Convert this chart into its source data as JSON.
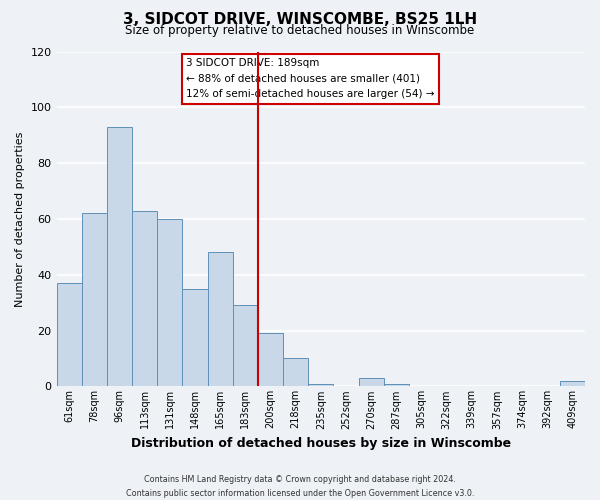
{
  "title": "3, SIDCOT DRIVE, WINSCOMBE, BS25 1LH",
  "subtitle": "Size of property relative to detached houses in Winscombe",
  "xlabel": "Distribution of detached houses by size in Winscombe",
  "ylabel": "Number of detached properties",
  "bar_labels": [
    "61sqm",
    "78sqm",
    "96sqm",
    "113sqm",
    "131sqm",
    "148sqm",
    "165sqm",
    "183sqm",
    "200sqm",
    "218sqm",
    "235sqm",
    "252sqm",
    "270sqm",
    "287sqm",
    "305sqm",
    "322sqm",
    "339sqm",
    "357sqm",
    "374sqm",
    "392sqm",
    "409sqm"
  ],
  "bar_values": [
    37,
    62,
    93,
    63,
    60,
    35,
    48,
    29,
    19,
    10,
    1,
    0,
    3,
    1,
    0,
    0,
    0,
    0,
    0,
    0,
    2
  ],
  "bar_color": "#c8d8e8",
  "bar_edge_color": "#6090b8",
  "ylim": [
    0,
    120
  ],
  "yticks": [
    0,
    20,
    40,
    60,
    80,
    100,
    120
  ],
  "property_line_x": 7.5,
  "property_line_color": "#cc0000",
  "annotation_title": "3 SIDCOT DRIVE: 189sqm",
  "annotation_line1": "← 88% of detached houses are smaller (401)",
  "annotation_line2": "12% of semi-detached houses are larger (54) →",
  "footer_line1": "Contains HM Land Registry data © Crown copyright and database right 2024.",
  "footer_line2": "Contains public sector information licensed under the Open Government Licence v3.0.",
  "background_color": "#eef2f7",
  "grid_color": "#ffffff"
}
